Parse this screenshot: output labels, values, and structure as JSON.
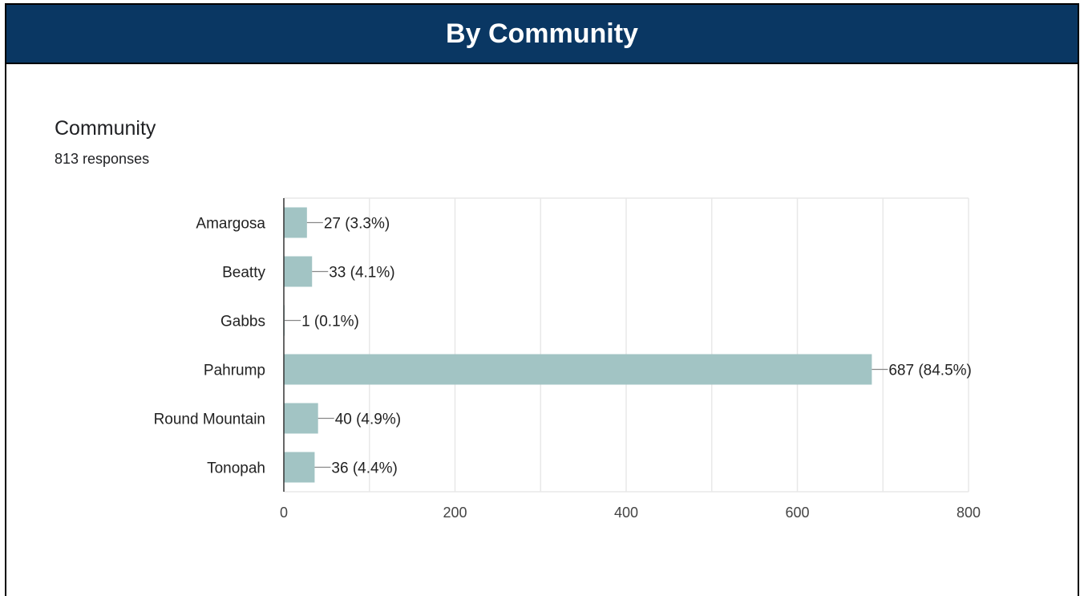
{
  "header": {
    "title": "By Community"
  },
  "question": {
    "title": "Community",
    "responses": "813 responses"
  },
  "colors": {
    "banner": "#0a3763",
    "bar": "#a2c4c4",
    "grid": "#e8e8e8"
  },
  "chart_data": {
    "type": "bar",
    "orientation": "horizontal",
    "categories": [
      "Amargosa",
      "Beatty",
      "Gabbs",
      "Pahrump",
      "Round Mountain",
      "Tonopah"
    ],
    "values": [
      27,
      33,
      1,
      687,
      40,
      36
    ],
    "data_labels": [
      "27 (3.3%)",
      "33 (4.1%)",
      "1 (0.1%)",
      "687 (84.5%)",
      "40 (4.9%)",
      "36 (4.4%)"
    ],
    "xlim": [
      0,
      800
    ],
    "x_ticks": [
      0,
      200,
      400,
      600,
      800
    ],
    "grid": true
  }
}
